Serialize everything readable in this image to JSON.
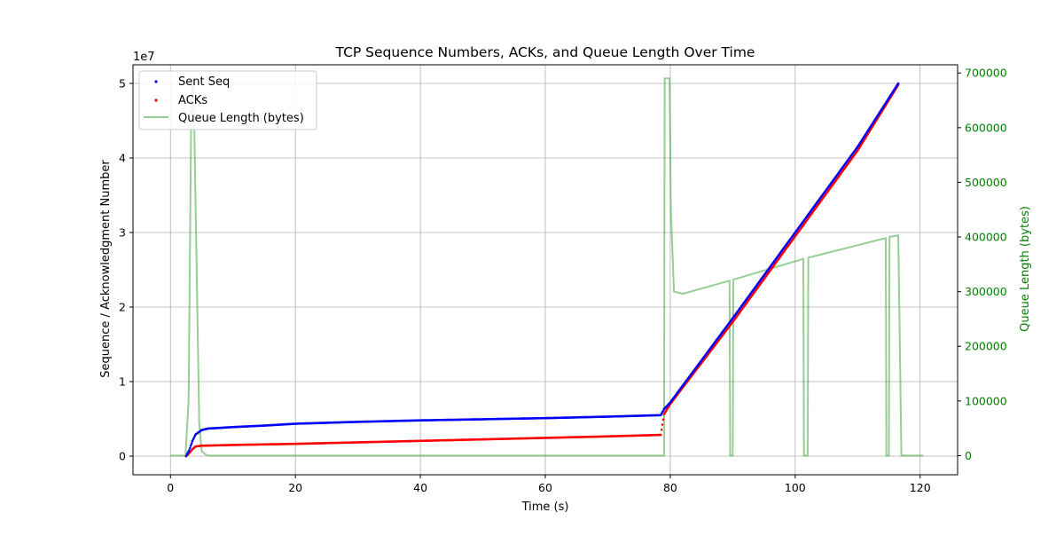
{
  "chart_data": {
    "type": "scatter",
    "title": "TCP Sequence Numbers, ACKs, and Queue Length Over Time",
    "xlabel": "Time (s)",
    "ylabel_left": "Sequence / Acknowledgment Number",
    "ylabel_right": "Queue Length (bytes)",
    "left_axis_multiplier": "1e7",
    "xlim": [
      -6,
      126
    ],
    "ylim_left": [
      -2500000,
      52500000
    ],
    "ylim_right": [
      -35000,
      715000
    ],
    "x_ticks": [
      0,
      20,
      40,
      60,
      80,
      100,
      120
    ],
    "y_left_ticks": [
      0,
      1,
      2,
      3,
      4,
      5
    ],
    "y_right_ticks": [
      0,
      100000,
      200000,
      300000,
      400000,
      500000,
      600000,
      700000
    ],
    "grid": true,
    "legend_position": "top-left",
    "colors": {
      "sent_seq": "#0000ff",
      "acks": "#ff0000",
      "queue": "#2ca02c",
      "right_axis": "#008000"
    },
    "series": [
      {
        "name": "Sent Seq",
        "kind": "scatter",
        "points": [
          [
            2.5,
            0
          ],
          [
            3.0,
            800000
          ],
          [
            3.5,
            2000000
          ],
          [
            4.0,
            2900000
          ],
          [
            5.0,
            3500000
          ],
          [
            6.0,
            3700000
          ],
          [
            10,
            3900000
          ],
          [
            15,
            4100000
          ],
          [
            20,
            4350000
          ],
          [
            30,
            4600000
          ],
          [
            40,
            4800000
          ],
          [
            50,
            4950000
          ],
          [
            60,
            5100000
          ],
          [
            70,
            5300000
          ],
          [
            78.5,
            5500000
          ],
          [
            79.0,
            6300000
          ],
          [
            80.0,
            7200000
          ],
          [
            90,
            18500000
          ],
          [
            100,
            30000000
          ],
          [
            110,
            41500000
          ],
          [
            116.5,
            50000000
          ]
        ]
      },
      {
        "name": "ACKs",
        "kind": "scatter",
        "points": [
          [
            2.5,
            0
          ],
          [
            3.0,
            400000
          ],
          [
            3.5,
            900000
          ],
          [
            4.0,
            1300000
          ],
          [
            5.0,
            1400000
          ],
          [
            10,
            1500000
          ],
          [
            20,
            1650000
          ],
          [
            30,
            1850000
          ],
          [
            40,
            2050000
          ],
          [
            50,
            2250000
          ],
          [
            60,
            2450000
          ],
          [
            70,
            2650000
          ],
          [
            78.5,
            2850000
          ],
          [
            79.0,
            5600000
          ],
          [
            80.0,
            7000000
          ],
          [
            90,
            18000000
          ],
          [
            100,
            29500000
          ],
          [
            110,
            41000000
          ],
          [
            116.5,
            49800000
          ]
        ]
      },
      {
        "name": "Queue Length (bytes)",
        "kind": "line",
        "points": [
          [
            0,
            0
          ],
          [
            2.4,
            0
          ],
          [
            2.9,
            100000
          ],
          [
            3.3,
            600000
          ],
          [
            3.5,
            680000
          ],
          [
            3.7,
            680000
          ],
          [
            4.1,
            400000
          ],
          [
            4.6,
            60000
          ],
          [
            5.0,
            8000
          ],
          [
            5.6,
            2000
          ],
          [
            6,
            0
          ],
          [
            79.0,
            0
          ],
          [
            79.1,
            690000
          ],
          [
            79.9,
            690000
          ],
          [
            80.1,
            450000
          ],
          [
            80.6,
            300000
          ],
          [
            82,
            296000
          ],
          [
            89.5,
            320000
          ],
          [
            89.6,
            0
          ],
          [
            90.0,
            0
          ],
          [
            90.1,
            322000
          ],
          [
            101.3,
            360000
          ],
          [
            101.4,
            0
          ],
          [
            102.0,
            0
          ],
          [
            102.1,
            362000
          ],
          [
            114.5,
            398000
          ],
          [
            114.6,
            0
          ],
          [
            115.0,
            0
          ],
          [
            115.1,
            400000
          ],
          [
            116.5,
            403000
          ],
          [
            117.0,
            0
          ],
          [
            120.5,
            0
          ]
        ]
      }
    ]
  }
}
